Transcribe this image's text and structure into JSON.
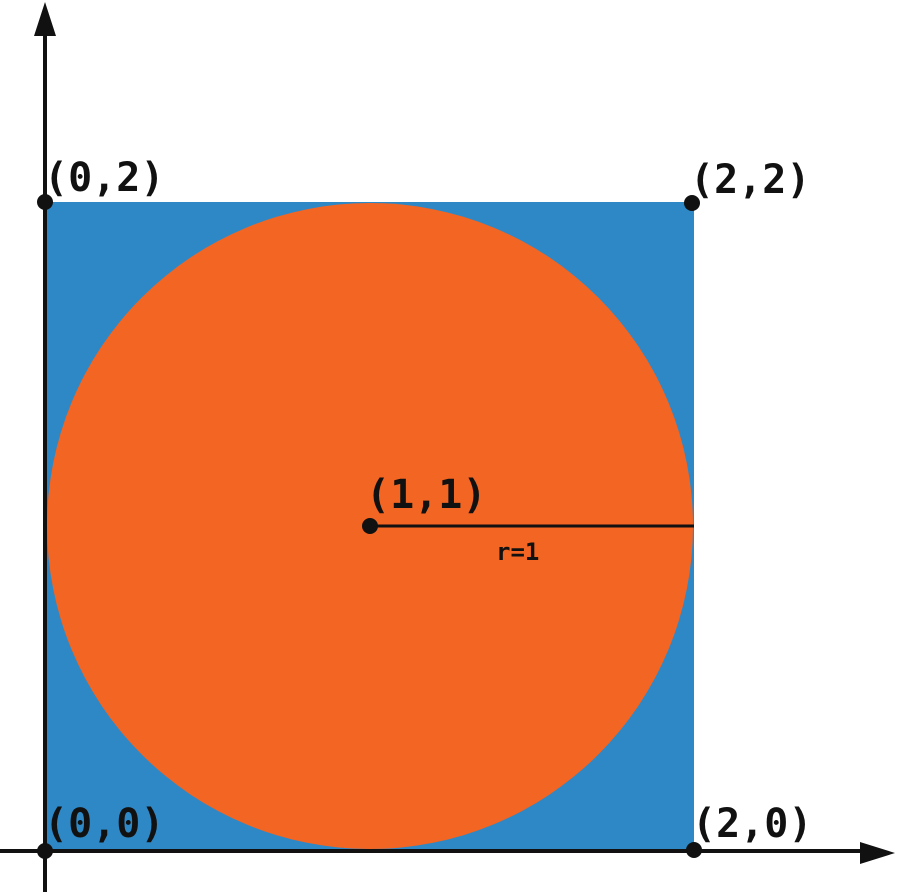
{
  "colors": {
    "square": "#2e88c6",
    "circle": "#f26522",
    "ink": "#111111",
    "background": "#ffffff"
  },
  "points": {
    "origin": "(0,0)",
    "bottom_right": "(2,0)",
    "top_left": "(0,2)",
    "top_right": "(2,2)",
    "center": "(1,1)"
  },
  "radius_label": "r=1"
}
